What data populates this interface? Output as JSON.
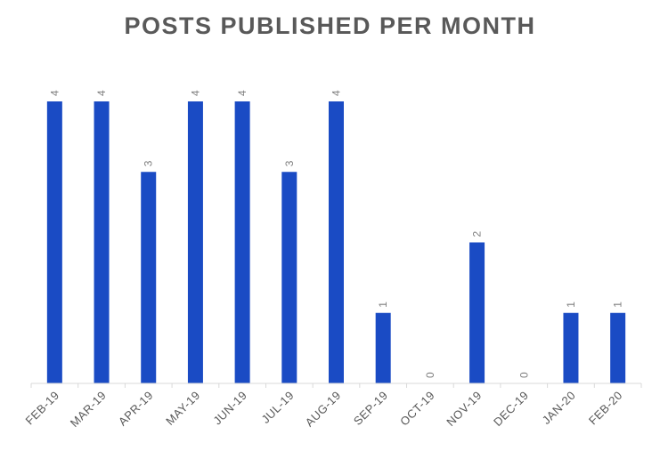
{
  "chart_data": {
    "type": "bar",
    "title": "POSTS PUBLISHED PER MONTH",
    "categories": [
      "FEB-19",
      "MAR-19",
      "APR-19",
      "MAY-19",
      "JUN-19",
      "JUL-19",
      "AUG-19",
      "SEP-19",
      "OCT-19",
      "NOV-19",
      "DEC-19",
      "JAN-20",
      "FEB-20"
    ],
    "values": [
      4,
      4,
      3,
      4,
      4,
      3,
      4,
      1,
      0,
      2,
      0,
      1,
      1
    ],
    "xlabel": "",
    "ylabel": "",
    "ylim": [
      0,
      4
    ],
    "grid": false,
    "data_labels": true,
    "bar_color": "#1a4bc4",
    "axis_color": "#d9d9d9",
    "text_color": "#595959",
    "label_color": "#7f7f7f"
  }
}
